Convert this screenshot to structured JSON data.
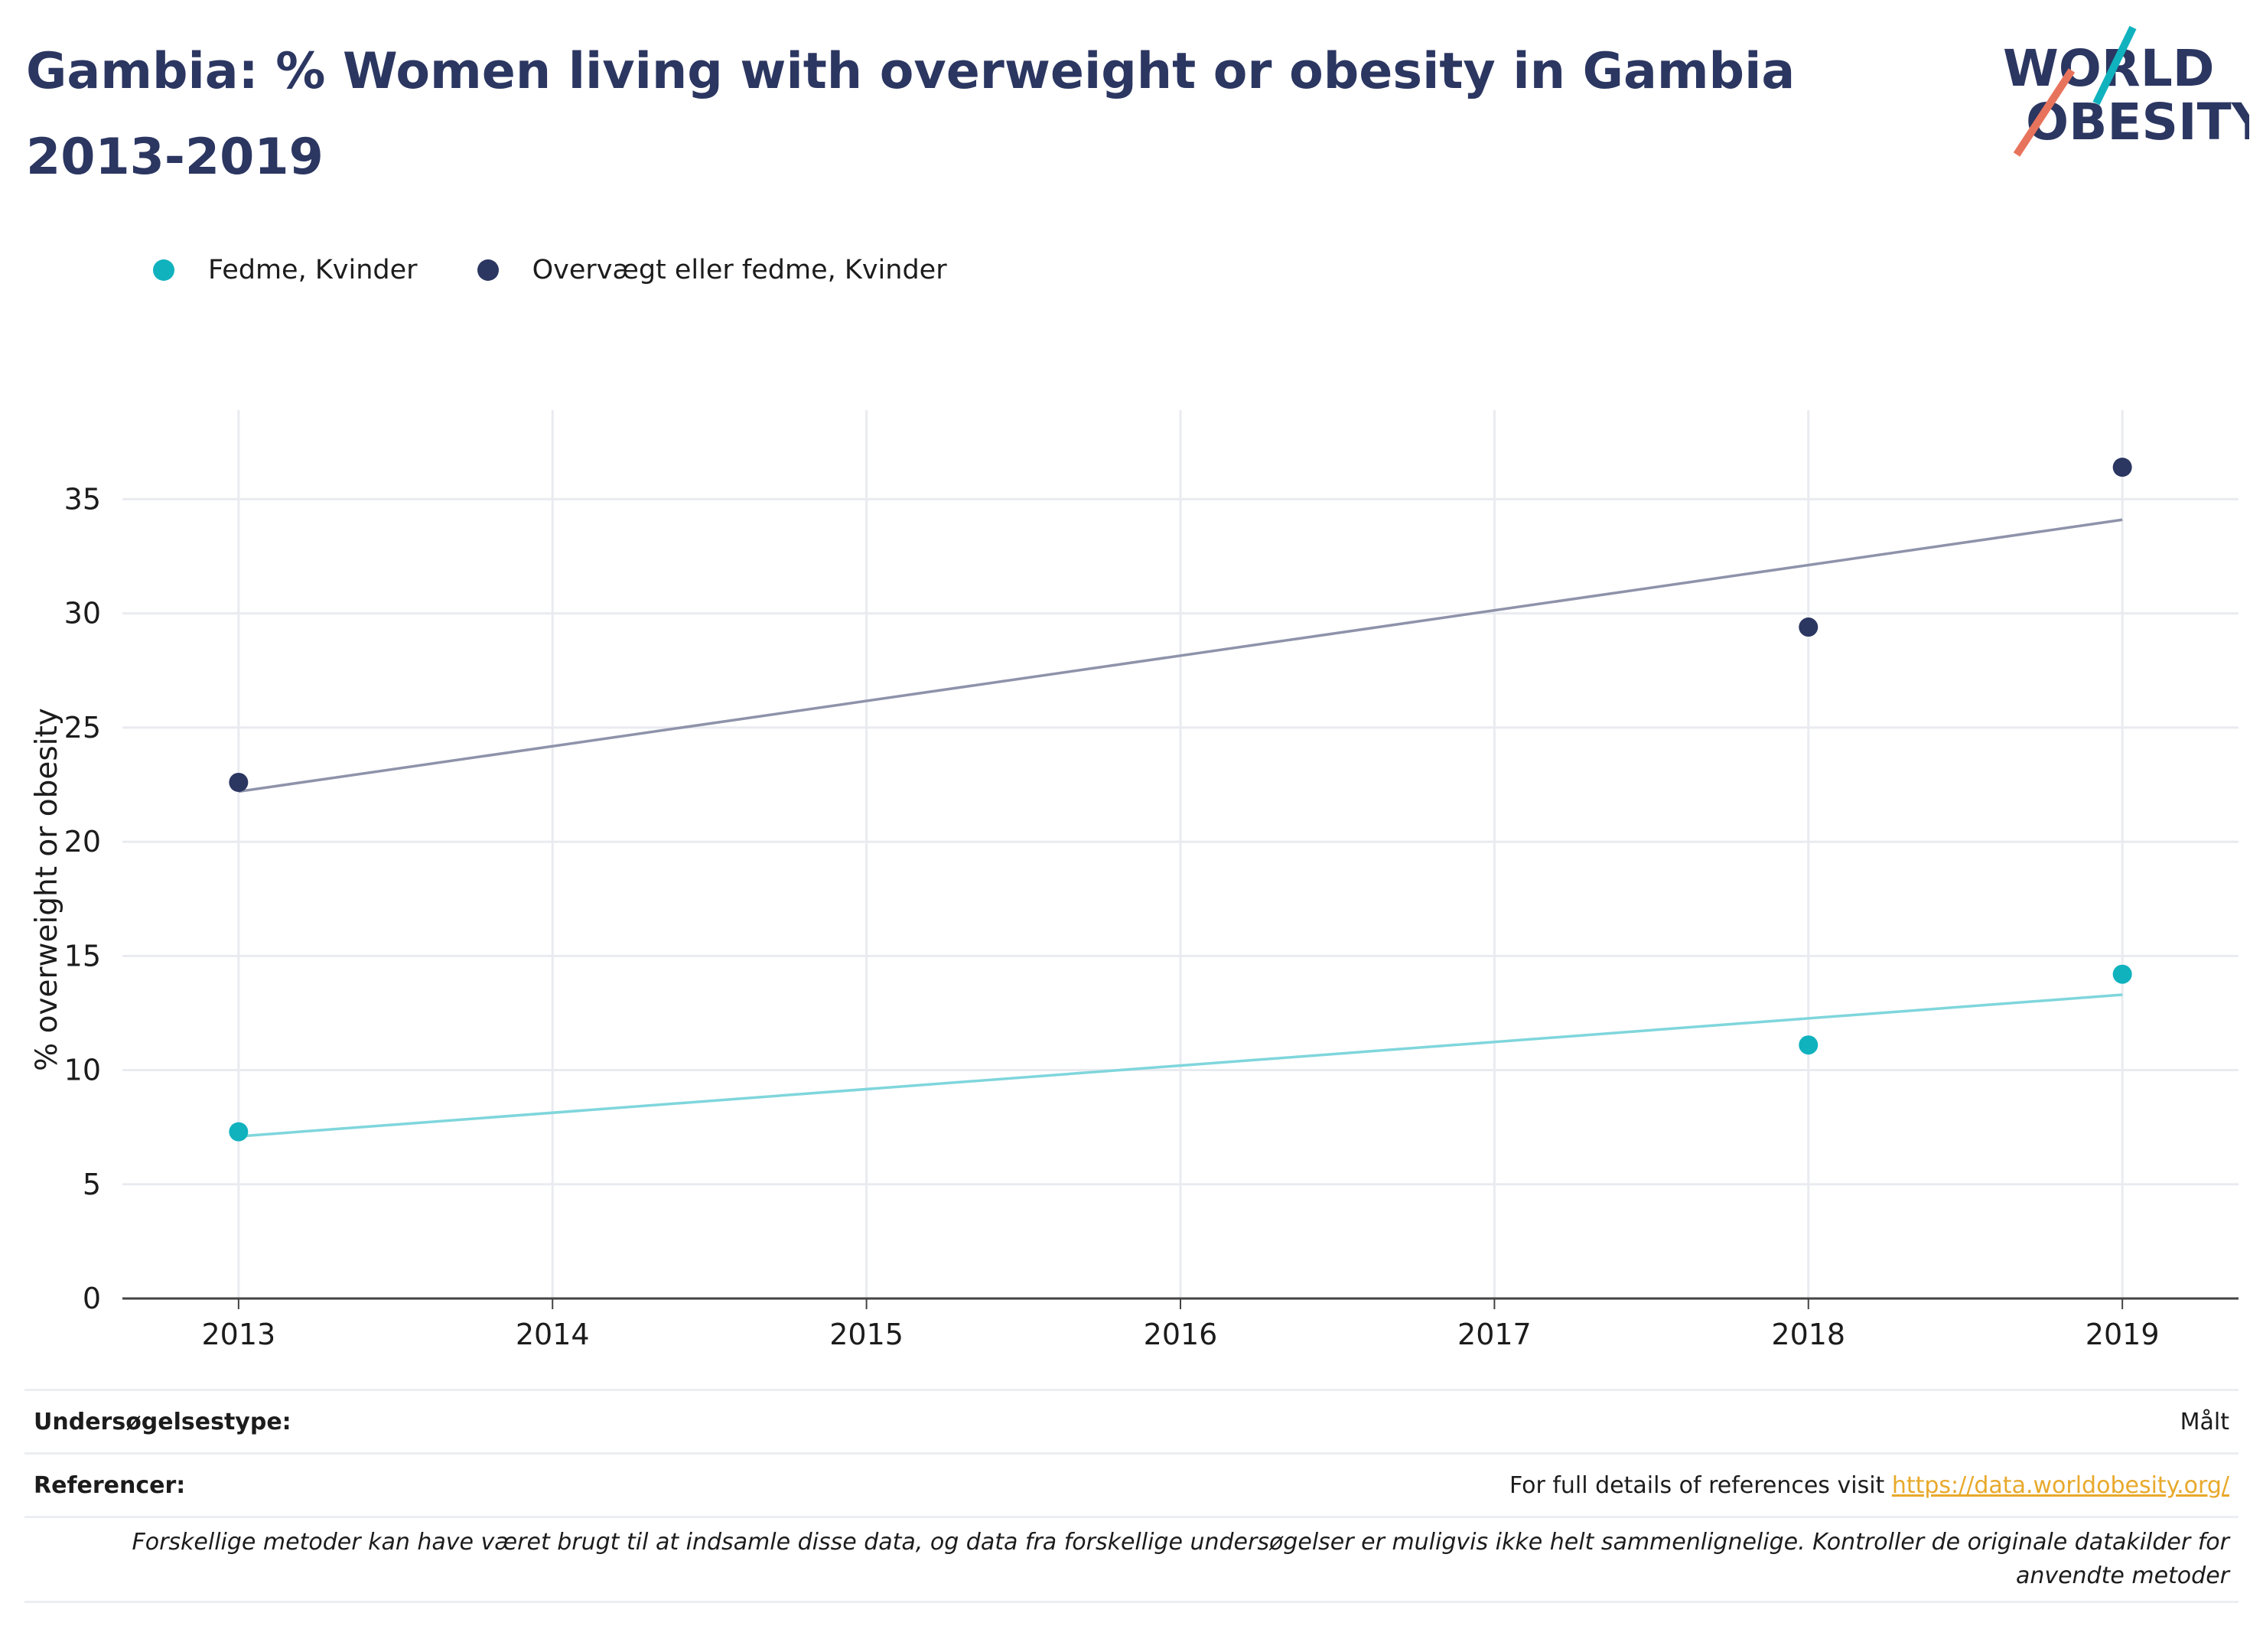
{
  "header": {
    "title": "Gambia: % Women living with overweight or obesity in Gambia 2013-2019",
    "logo_line1": "WORLD",
    "logo_line2": "OBESITY"
  },
  "legend": [
    {
      "label": "Fedme, Kvinder",
      "color": "#10b2be"
    },
    {
      "label": "Overvægt eller fedme, Kvinder",
      "color": "#2b3661"
    }
  ],
  "chart_data": {
    "type": "scatter",
    "title": "Gambia: % Women living with overweight or obesity in Gambia 2013-2019",
    "xlabel": "",
    "ylabel": "% overweight or obesity",
    "x_ticks": [
      "2013",
      "2014",
      "2015",
      "2016",
      "2017",
      "2018",
      "2019"
    ],
    "y_ticks": [
      "0",
      "5",
      "10",
      "15",
      "20",
      "25",
      "30",
      "35"
    ],
    "xlim": [
      2012.63,
      2019.37
    ],
    "ylim": [
      0,
      38.9
    ],
    "grid": true,
    "legend_position": "top-left",
    "series": [
      {
        "name": "Fedme, Kvinder",
        "color": "#10b2be",
        "trend_color": "#7fd6dc",
        "points": [
          {
            "x": 2013,
            "y": 7.3
          },
          {
            "x": 2018,
            "y": 11.1
          },
          {
            "x": 2019,
            "y": 14.2
          }
        ],
        "trend": [
          {
            "x": 2013,
            "y": 7.1
          },
          {
            "x": 2019,
            "y": 13.3
          }
        ]
      },
      {
        "name": "Overvægt eller fedme, Kvinder",
        "color": "#2b3661",
        "trend_color": "#8e93aa",
        "points": [
          {
            "x": 2013,
            "y": 22.6
          },
          {
            "x": 2018,
            "y": 29.4
          },
          {
            "x": 2019,
            "y": 36.4
          }
        ],
        "trend": [
          {
            "x": 2013,
            "y": 22.2
          },
          {
            "x": 2019,
            "y": 34.1
          }
        ]
      }
    ]
  },
  "footer": {
    "survey_label": "Undersøgelsestype:",
    "survey_value": "Målt",
    "refs_label": "Referencer:",
    "refs_text": "For full details of references visit ",
    "refs_link": "https://data.worldobesity.org/",
    "note": "Forskellige metoder kan have været brugt til at indsamle disse data, og data fra forskellige undersøgelser er muligvis ikke helt sammenlignelige. Kontroller de originale datakilder for anvendte metoder"
  },
  "colors": {
    "brand_navy": "#2b3661",
    "brand_teal": "#10b2be",
    "brand_coral": "#e8735c",
    "link": "#e8a92b"
  }
}
